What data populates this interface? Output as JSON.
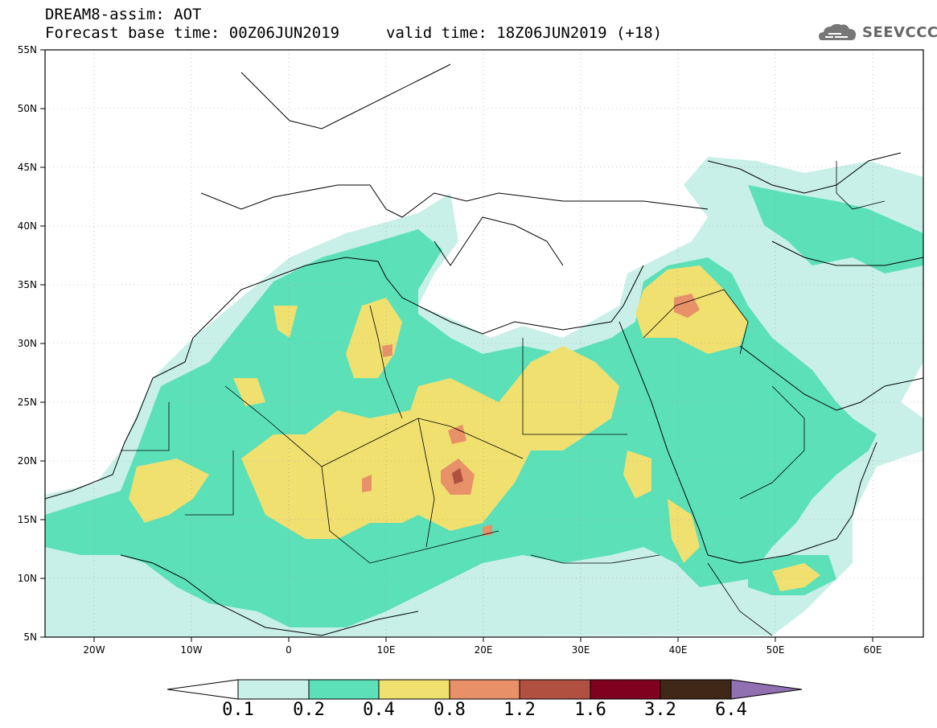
{
  "header": {
    "title": "DREAM8-assim: AOT",
    "base_time": "Forecast base time: 00Z06JUN2019",
    "valid_time": "valid time: 18Z06JUN2019 (+18)",
    "logo_text": "SEEVCCC"
  },
  "map": {
    "lon_range": [
      -25,
      65
    ],
    "lat_range": [
      5,
      55
    ],
    "lat_ticks": [
      "5N",
      "10N",
      "15N",
      "20N",
      "25N",
      "30N",
      "35N",
      "40N",
      "45N",
      "50N",
      "55N"
    ],
    "lon_ticks": [
      "20W",
      "10W",
      "0",
      "10E",
      "20E",
      "30E",
      "40E",
      "50E",
      "60E"
    ],
    "ocean_color": "#ffffff",
    "border_color": "#000000"
  },
  "colorbar": {
    "labels": [
      "0.1",
      "0.2",
      "0.4",
      "0.8",
      "1.2",
      "1.6",
      "3.2",
      "6.4"
    ],
    "colors": [
      "#c8f0e8",
      "#5ce0b8",
      "#f0e070",
      "#e89068",
      "#b05040",
      "#800020",
      "#402818",
      "#9070b0"
    ],
    "under_color": "#ffffff"
  }
}
